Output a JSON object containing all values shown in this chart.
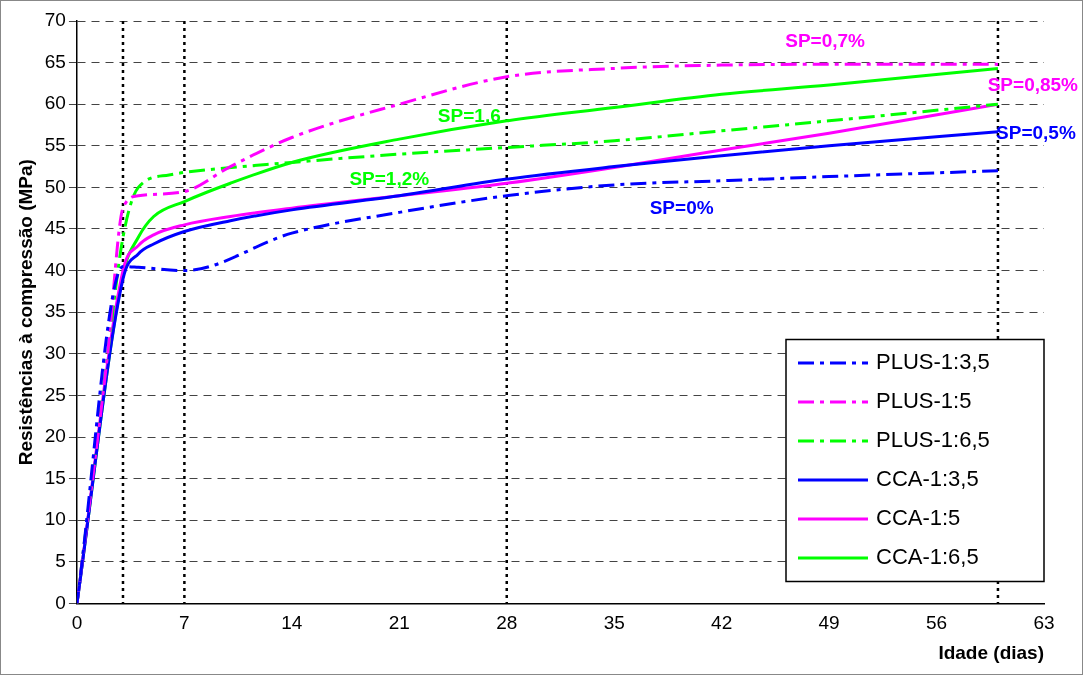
{
  "chart_data": {
    "type": "line",
    "xlabel": "Idade (dias)",
    "ylabel": "Resistências à compressão (MPa)",
    "xlim": [
      0,
      63
    ],
    "xticks": [
      0,
      7,
      14,
      21,
      28,
      35,
      42,
      49,
      56,
      63
    ],
    "ylim": [
      0,
      70
    ],
    "yticks": [
      0,
      5,
      10,
      15,
      20,
      25,
      30,
      35,
      40,
      45,
      50,
      55,
      60,
      65,
      70
    ],
    "grid": "y",
    "legend": "bottom right",
    "marker": "none",
    "ref_lines": [
      {
        "axis": "x",
        "value": 3,
        "color": "#000000",
        "line_style": "dotted"
      },
      {
        "axis": "x",
        "value": 7,
        "color": "#000000",
        "line_style": "dotted"
      },
      {
        "axis": "x",
        "value": 28,
        "color": "#000000",
        "line_style": "dotted"
      },
      {
        "axis": "x",
        "value": 60,
        "color": "#000000",
        "line_style": "dotted"
      }
    ],
    "series": [
      {
        "name": "PLUS-1:3,5",
        "color": "#0000ff",
        "line_style": "dashed",
        "x": [
          0,
          3,
          4,
          7,
          14,
          21,
          28,
          35,
          42,
          49,
          60
        ],
        "values": [
          0,
          40.5,
          40.4,
          40,
          44.5,
          47,
          49,
          50.3,
          50.8,
          51.3,
          52
        ]
      },
      {
        "name": "PLUS-1:5",
        "color": "#ff00ff",
        "line_style": "dashed",
        "x": [
          0,
          2,
          3,
          4,
          7,
          10,
          14,
          21,
          28,
          35,
          42,
          49,
          60
        ],
        "values": [
          0,
          30,
          47.5,
          49,
          49.5,
          52.5,
          56,
          60,
          63.3,
          64.3,
          64.7,
          64.8,
          64.8
        ]
      },
      {
        "name": "PLUS-1:6,5",
        "color": "#00ff00",
        "line_style": "dashed",
        "x": [
          0,
          2,
          3,
          4,
          6,
          7,
          14,
          21,
          28,
          35,
          42,
          49,
          60
        ],
        "values": [
          0,
          30,
          44,
          50,
          51.5,
          51.8,
          53,
          54,
          54.8,
          55.6,
          56.8,
          58,
          60
        ]
      },
      {
        "name": "CCA-1:3,5",
        "color": "#0000ff",
        "line_style": "solid",
        "x": [
          0,
          3,
          4,
          5,
          7,
          10,
          14,
          21,
          28,
          35,
          42,
          49,
          60
        ],
        "values": [
          0,
          39,
          42,
          43.2,
          44.7,
          46,
          47.3,
          49,
          51,
          52.5,
          53.8,
          55,
          56.7
        ]
      },
      {
        "name": "CCA-1:5",
        "color": "#ff00ff",
        "line_style": "solid",
        "x": [
          0,
          3,
          4,
          5,
          7,
          10,
          14,
          21,
          28,
          35,
          42,
          49,
          60
        ],
        "values": [
          0,
          40,
          43,
          44.3,
          45.5,
          46.5,
          47.5,
          49,
          50.5,
          52.4,
          54.5,
          56.5,
          60
        ]
      },
      {
        "name": "CCA-1:6,5",
        "color": "#00ff00",
        "line_style": "solid",
        "x": [
          0,
          3,
          4,
          5,
          7,
          10,
          14,
          21,
          28,
          35,
          42,
          49,
          60
        ],
        "values": [
          0,
          39.5,
          44,
          46.5,
          48.3,
          50.5,
          53,
          55.8,
          58,
          59.6,
          61.2,
          62.3,
          64.3
        ]
      }
    ],
    "annotations": [
      {
        "text": "SP=0,7%",
        "x": 49,
        "y": 64.8
      },
      {
        "text": "SP=0,85%",
        "x": 60,
        "y": 60
      },
      {
        "text": "SP=0,5%",
        "x": 60,
        "y": 56.7
      },
      {
        "text": "SP=0%",
        "x": 42,
        "y": 50.8
      },
      {
        "text": "SP=1,6",
        "x": 21,
        "y": 55.8
      },
      {
        "text": "SP=1,2%",
        "x": 21,
        "y": 54
      }
    ]
  }
}
